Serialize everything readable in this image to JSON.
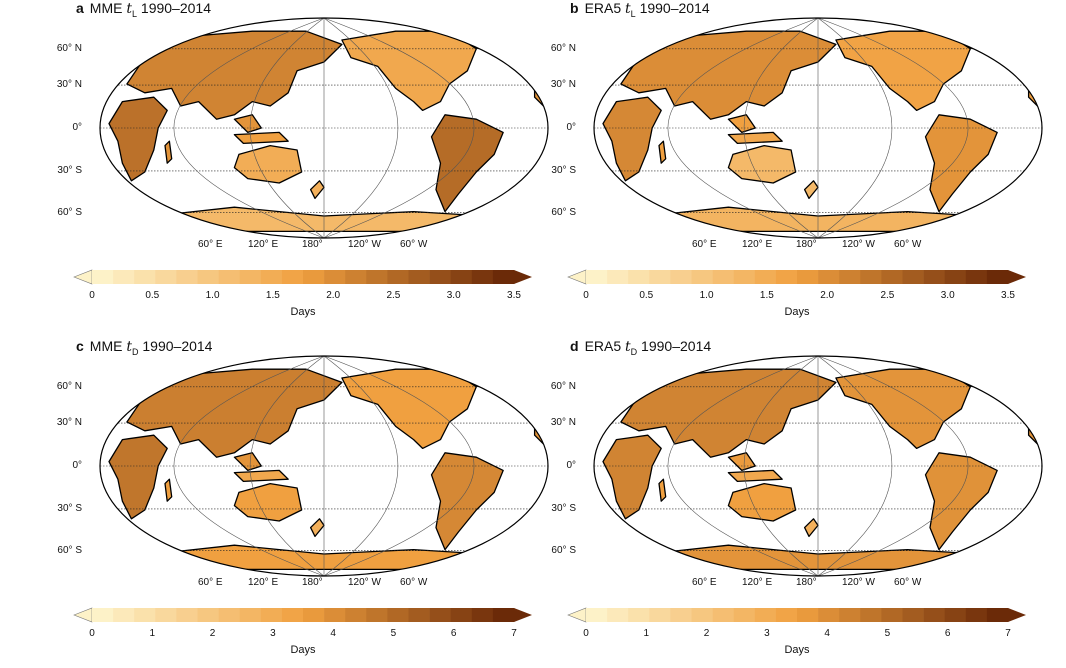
{
  "panels": [
    {
      "letter": "a",
      "dataset": "MME",
      "variable": "t",
      "subscript": "L",
      "period": "1990–2014",
      "ticks": [
        "0",
        "0.5",
        "1.0",
        "1.5",
        "2.0",
        "2.5",
        "3.0",
        "3.5"
      ]
    },
    {
      "letter": "b",
      "dataset": "ERA5",
      "variable": "t",
      "subscript": "L",
      "period": "1990–2014",
      "ticks": [
        "0",
        "0.5",
        "1.0",
        "1.5",
        "2.0",
        "2.5",
        "3.0",
        "3.5"
      ]
    },
    {
      "letter": "c",
      "dataset": "MME",
      "variable": "t",
      "subscript": "D",
      "period": "1990–2014",
      "ticks": [
        "0",
        "1",
        "2",
        "3",
        "4",
        "5",
        "6",
        "7"
      ]
    },
    {
      "letter": "d",
      "dataset": "ERA5",
      "variable": "t",
      "subscript": "D",
      "period": "1990–2014",
      "ticks": [
        "0",
        "1",
        "2",
        "3",
        "4",
        "5",
        "6",
        "7"
      ]
    }
  ],
  "latitude_labels": [
    "60° N",
    "30° N",
    "0°",
    "30° S",
    "60° S"
  ],
  "longitude_labels": [
    "60° E",
    "120° E",
    "180°",
    "120° W",
    "60° W"
  ],
  "colorbar_label": "Days",
  "colors": {
    "low": "#fdf2c8",
    "mid": "#f0a040",
    "high": "#6b2a08",
    "ocean": "#ffffff"
  }
}
